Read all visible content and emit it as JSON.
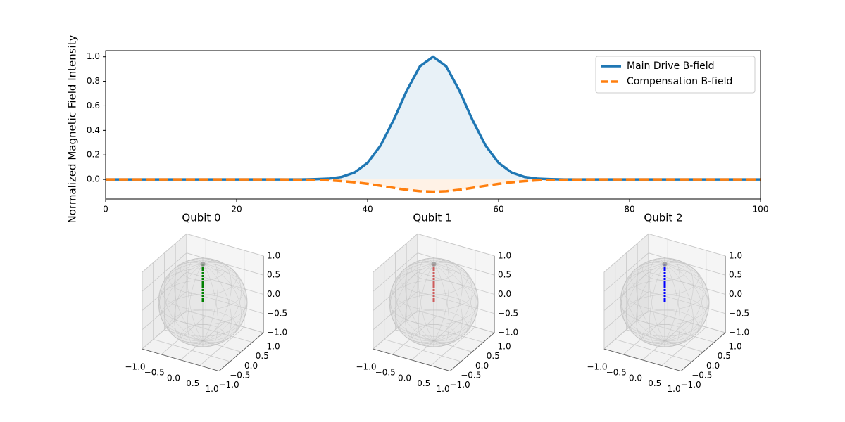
{
  "chart_data": [
    {
      "type": "line",
      "ylabel": "Normalized Magnetic Field Intensity",
      "x": [
        0,
        2,
        4,
        6,
        8,
        10,
        12,
        14,
        16,
        18,
        20,
        22,
        24,
        26,
        28,
        30,
        32,
        34,
        36,
        38,
        40,
        42,
        44,
        46,
        48,
        50,
        52,
        54,
        56,
        58,
        60,
        62,
        64,
        66,
        68,
        70,
        72,
        74,
        76,
        78,
        80,
        82,
        84,
        86,
        88,
        90,
        92,
        94,
        96,
        98,
        100
      ],
      "series": [
        {
          "name": "Main Drive B-field",
          "color": "#1f77b4",
          "dash": false,
          "fill": true,
          "values": [
            0,
            0,
            0,
            0,
            0,
            0,
            0,
            0,
            0,
            0,
            0,
            0,
            0,
            0,
            0,
            0,
            0.002,
            0.006,
            0.02,
            0.056,
            0.135,
            0.278,
            0.487,
            0.726,
            0.923,
            1,
            0.923,
            0.726,
            0.487,
            0.278,
            0.135,
            0.056,
            0.02,
            0.006,
            0.002,
            0,
            0,
            0,
            0,
            0,
            0,
            0,
            0,
            0,
            0,
            0,
            0,
            0,
            0,
            0,
            0
          ]
        },
        {
          "name": "Compensation B-field",
          "color": "#ff7f0e",
          "dash": true,
          "fill": true,
          "values": [
            0,
            0,
            0,
            0,
            0,
            0,
            0,
            0,
            0,
            0,
            0,
            0,
            0,
            0,
            -0.001,
            -0.002,
            -0.004,
            -0.007,
            -0.014,
            -0.023,
            -0.036,
            -0.052,
            -0.069,
            -0.085,
            -0.096,
            -0.1,
            -0.096,
            -0.085,
            -0.069,
            -0.052,
            -0.036,
            -0.023,
            -0.014,
            -0.007,
            -0.004,
            -0.002,
            -0.001,
            0,
            0,
            0,
            0,
            0,
            0,
            0,
            0,
            0,
            0,
            0,
            0,
            0,
            0
          ]
        }
      ],
      "xlim": [
        0,
        100
      ],
      "xticks": [
        0,
        20,
        40,
        60,
        80,
        100
      ],
      "ylim": [
        -0.16,
        1.05
      ],
      "yticks": [
        {
          "value": 0,
          "label": "0.0"
        },
        0.2,
        0.4,
        0.6,
        0.8,
        {
          "value": 1,
          "label": "1.0"
        }
      ],
      "legend": "upper right"
    },
    {
      "type": "bloch",
      "title": "Qubit 0",
      "color": "green",
      "vector": {
        "x": 0,
        "y": 0,
        "z": 1
      },
      "xlim": [
        -1,
        1
      ],
      "ylim": [
        -1,
        1
      ],
      "zlim": [
        -1,
        1
      ],
      "xticks": [
        {
          "value": -1,
          "label": "−1.0"
        },
        {
          "value": -0.5,
          "label": "−0.5"
        },
        {
          "value": 0,
          "label": "0.0"
        },
        0.5,
        {
          "value": 1,
          "label": "1.0"
        }
      ],
      "yticks": [
        {
          "value": -1,
          "label": "−1.0"
        },
        {
          "value": -0.5,
          "label": "−0.5"
        },
        {
          "value": 0,
          "label": "0.0"
        },
        0.5,
        {
          "value": 1,
          "label": "1.0"
        }
      ],
      "zticks": [
        {
          "value": -1,
          "label": "−1.0"
        },
        {
          "value": -0.5,
          "label": "−0.5"
        },
        {
          "value": 0,
          "label": "0.0"
        },
        0.5,
        {
          "value": 1,
          "label": "1.0"
        }
      ]
    },
    {
      "type": "bloch",
      "title": "Qubit 1",
      "color": "#cd5c5c",
      "vector": {
        "x": 0,
        "y": 0,
        "z": 1
      },
      "xlim": [
        -1,
        1
      ],
      "ylim": [
        -1,
        1
      ],
      "zlim": [
        -1,
        1
      ],
      "xticks": [
        {
          "value": -1,
          "label": "−1.0"
        },
        {
          "value": -0.5,
          "label": "−0.5"
        },
        {
          "value": 0,
          "label": "0.0"
        },
        0.5,
        {
          "value": 1,
          "label": "1.0"
        }
      ],
      "yticks": [
        {
          "value": -1,
          "label": "−1.0"
        },
        {
          "value": -0.5,
          "label": "−0.5"
        },
        {
          "value": 0,
          "label": "0.0"
        },
        0.5,
        {
          "value": 1,
          "label": "1.0"
        }
      ],
      "zticks": [
        {
          "value": -1,
          "label": "−1.0"
        },
        {
          "value": -0.5,
          "label": "−0.5"
        },
        {
          "value": 0,
          "label": "0.0"
        },
        0.5,
        {
          "value": 1,
          "label": "1.0"
        }
      ]
    },
    {
      "type": "bloch",
      "title": "Qubit 2",
      "color": "blue",
      "vector": {
        "x": 0,
        "y": 0,
        "z": 1
      },
      "xlim": [
        -1,
        1
      ],
      "ylim": [
        -1,
        1
      ],
      "zlim": [
        -1,
        1
      ],
      "xticks": [
        {
          "value": -1,
          "label": "−1.0"
        },
        {
          "value": -0.5,
          "label": "−0.5"
        },
        {
          "value": 0,
          "label": "0.0"
        },
        0.5,
        {
          "value": 1,
          "label": "1.0"
        }
      ],
      "yticks": [
        {
          "value": -1,
          "label": "−1.0"
        },
        {
          "value": -0.5,
          "label": "−0.5"
        },
        {
          "value": 0,
          "label": "0.0"
        },
        0.5,
        {
          "value": 1,
          "label": "1.0"
        }
      ],
      "zticks": [
        {
          "value": -1,
          "label": "−1.0"
        },
        {
          "value": -0.5,
          "label": "−0.5"
        },
        {
          "value": 0,
          "label": "0.0"
        },
        0.5,
        {
          "value": 1,
          "label": "1.0"
        }
      ]
    }
  ]
}
